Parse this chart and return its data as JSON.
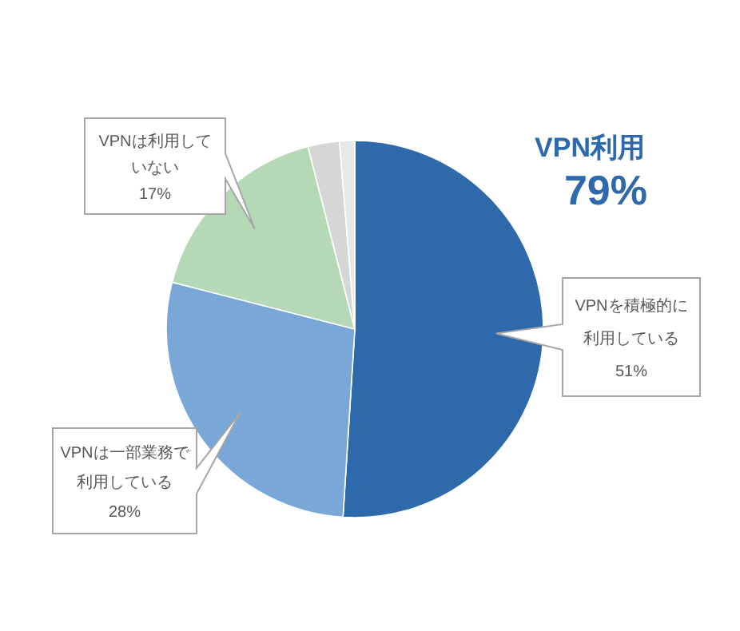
{
  "chart_data": {
    "type": "pie",
    "categories": [
      "VPNを積極的に利用している",
      "VPNは一部業務で利用している",
      "VPNは利用していない",
      null,
      null
    ],
    "values": [
      51,
      28,
      17,
      2.7,
      1.3
    ],
    "colors": [
      "#2e6aab",
      "#78a7d8",
      "#b5d9b7",
      "#d6d6d6",
      "#e8e8e8"
    ],
    "value_labels": [
      "51%",
      "28%",
      "17%",
      null,
      null
    ],
    "annotations": [
      "VPN利用",
      "79%"
    ]
  }
}
